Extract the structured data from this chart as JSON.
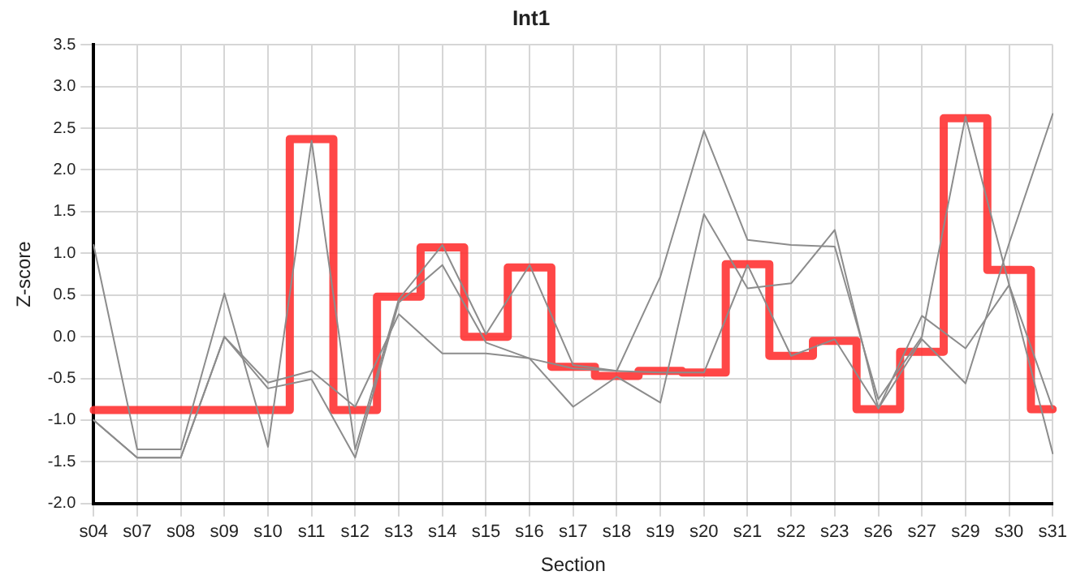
{
  "chart_data": {
    "type": "line",
    "title": "Int1",
    "xlabel": "Section",
    "ylabel": "Z-score",
    "categories": [
      "s04",
      "s07",
      "s08",
      "s09",
      "s10",
      "s11",
      "s12",
      "s13",
      "s14",
      "s15",
      "s16",
      "s17",
      "s18",
      "s19",
      "s20",
      "s21",
      "s22",
      "s23",
      "s26",
      "s27",
      "s29",
      "s30",
      "s31"
    ],
    "series": [
      {
        "color": "#8c8c8c",
        "values": [
          1.1,
          -1.35,
          -1.35,
          0.52,
          -1.32,
          2.35,
          -1.35,
          0.45,
          1.1,
          0.03,
          0.86,
          -0.34,
          -0.41,
          0.72,
          2.47,
          1.16,
          1.1,
          1.08,
          -0.75,
          0.0,
          2.64,
          0.62,
          -1.4
        ]
      },
      {
        "color": "#8c8c8c",
        "values": [
          -1.0,
          -1.45,
          -1.45,
          0.0,
          -0.62,
          -0.51,
          -1.45,
          0.41,
          0.86,
          -0.07,
          -0.26,
          -0.84,
          -0.48,
          -0.79,
          1.47,
          0.58,
          0.64,
          1.28,
          -0.86,
          -0.03,
          -0.56,
          1.12,
          2.67
        ]
      },
      {
        "color": "#8c8c8c",
        "values": [
          -1.0,
          -1.45,
          -1.45,
          0.0,
          -0.55,
          -0.41,
          -0.84,
          0.27,
          -0.2,
          -0.2,
          -0.26,
          -0.38,
          -0.41,
          -0.43,
          -0.43,
          0.86,
          -0.23,
          -0.03,
          -0.86,
          0.25,
          -0.14,
          0.62,
          -0.86
        ]
      },
      {
        "type": "step",
        "color": "#ff3333",
        "values": [
          -0.88,
          -0.88,
          -0.88,
          -0.88,
          -0.88,
          2.37,
          -0.88,
          0.48,
          1.07,
          0.0,
          0.83,
          -0.36,
          -0.47,
          -0.41,
          -0.43,
          0.87,
          -0.23,
          -0.05,
          -0.87,
          -0.18,
          2.62,
          0.8,
          -0.87
        ]
      }
    ],
    "ylim": [
      -2,
      3.5
    ],
    "yticks": [
      {
        "value": -2,
        "label": "-2.0"
      },
      {
        "value": -1.5,
        "label": "-1.5"
      },
      {
        "value": -1,
        "label": "-1.0"
      },
      {
        "value": -0.5,
        "label": "-0.5"
      },
      {
        "value": 0,
        "label": "0.0"
      },
      {
        "value": 0.5,
        "label": "0.5"
      },
      {
        "value": 1,
        "label": "1.0"
      },
      {
        "value": 1.5,
        "label": "1.5"
      },
      {
        "value": 2,
        "label": "2.0"
      },
      {
        "value": 2.5,
        "label": "2.5"
      },
      {
        "value": 3,
        "label": "3.0"
      },
      {
        "value": 3.5,
        "label": "3.5"
      }
    ],
    "grid": true,
    "legend": false,
    "marker": "none",
    "line_style": "solid"
  }
}
